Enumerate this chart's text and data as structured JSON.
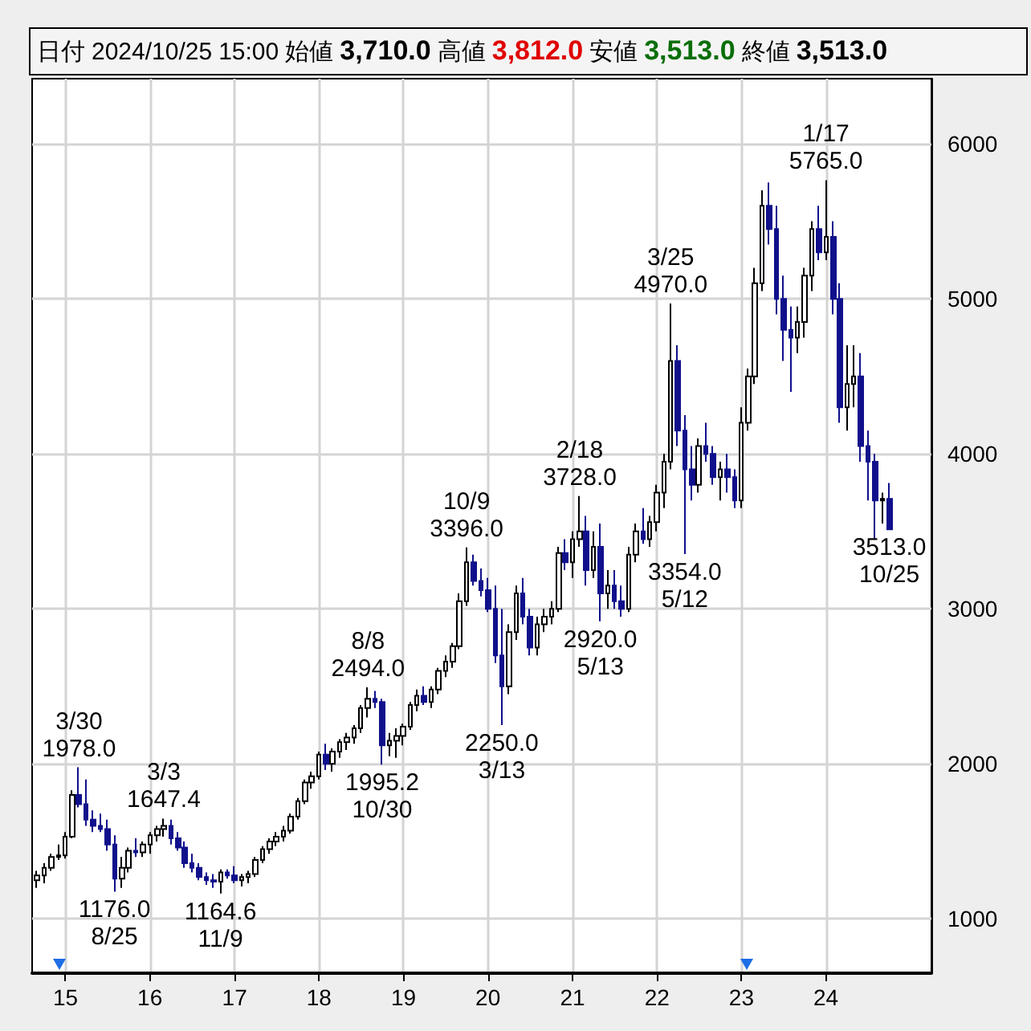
{
  "chart_data": {
    "type": "candlestick",
    "title": "日付 2024/10/25 15:00 始値 3,710.0 高値 3,812.0 安値 3,513.0 終値 3,513.0",
    "x": [
      "2014-09",
      "2014-10",
      "2014-11",
      "2014-12",
      "2015-01",
      "2015-02",
      "2015-03",
      "2015-04",
      "2015-05",
      "2015-06",
      "2015-07",
      "2015-08",
      "2015-09",
      "2015-10",
      "2015-11",
      "2015-12",
      "2016-01",
      "2016-02",
      "2016-03",
      "2016-04",
      "2016-05",
      "2016-06",
      "2016-07",
      "2016-08",
      "2016-09",
      "2016-10",
      "2016-11",
      "2016-12",
      "2017-01",
      "2017-02",
      "2017-03",
      "2017-04",
      "2017-05",
      "2017-06",
      "2017-07",
      "2017-08",
      "2017-09",
      "2017-10",
      "2017-11",
      "2017-12",
      "2018-01",
      "2018-02",
      "2018-03",
      "2018-04",
      "2018-05",
      "2018-06",
      "2018-07",
      "2018-08",
      "2018-09",
      "2018-10",
      "2018-11",
      "2018-12",
      "2019-01",
      "2019-02",
      "2019-03",
      "2019-04",
      "2019-05",
      "2019-06",
      "2019-07",
      "2019-08",
      "2019-09",
      "2019-10",
      "2019-11",
      "2019-12",
      "2020-01",
      "2020-02",
      "2020-03",
      "2020-04",
      "2020-05",
      "2020-06",
      "2020-07",
      "2020-08",
      "2020-09",
      "2020-10",
      "2020-11",
      "2020-12",
      "2021-01",
      "2021-02",
      "2021-03",
      "2021-04",
      "2021-05",
      "2021-06",
      "2021-07",
      "2021-08",
      "2021-09",
      "2021-10",
      "2021-11",
      "2021-12",
      "2022-01",
      "2022-02",
      "2022-03",
      "2022-04",
      "2022-05",
      "2022-06",
      "2022-07",
      "2022-08",
      "2022-09",
      "2022-10",
      "2022-11",
      "2022-12",
      "2023-01",
      "2023-02",
      "2023-03",
      "2023-04",
      "2023-05",
      "2023-06",
      "2023-07",
      "2023-08",
      "2023-09",
      "2023-10",
      "2023-11",
      "2023-12",
      "2024-01",
      "2024-02",
      "2024-03",
      "2024-04",
      "2024-05",
      "2024-06",
      "2024-07",
      "2024-08",
      "2024-09",
      "2024-10"
    ],
    "ohlc": [
      [
        1250,
        1310,
        1200,
        1280
      ],
      [
        1280,
        1360,
        1230,
        1330
      ],
      [
        1330,
        1420,
        1310,
        1400
      ],
      [
        1400,
        1480,
        1380,
        1410
      ],
      [
        1410,
        1560,
        1390,
        1530
      ],
      [
        1530,
        1830,
        1520,
        1800
      ],
      [
        1800,
        1978,
        1720,
        1740
      ],
      [
        1740,
        1900,
        1600,
        1640
      ],
      [
        1640,
        1700,
        1560,
        1600
      ],
      [
        1600,
        1680,
        1560,
        1580
      ],
      [
        1580,
        1640,
        1440,
        1480
      ],
      [
        1480,
        1540,
        1176,
        1260
      ],
      [
        1260,
        1400,
        1200,
        1330
      ],
      [
        1330,
        1460,
        1300,
        1440
      ],
      [
        1440,
        1520,
        1400,
        1430
      ],
      [
        1430,
        1500,
        1400,
        1480
      ],
      [
        1480,
        1560,
        1420,
        1540
      ],
      [
        1540,
        1600,
        1500,
        1580
      ],
      [
        1580,
        1647.4,
        1530,
        1600
      ],
      [
        1600,
        1640,
        1480,
        1520
      ],
      [
        1520,
        1560,
        1440,
        1460
      ],
      [
        1460,
        1500,
        1330,
        1360
      ],
      [
        1360,
        1420,
        1300,
        1330
      ],
      [
        1330,
        1360,
        1250,
        1270
      ],
      [
        1270,
        1300,
        1220,
        1250
      ],
      [
        1250,
        1290,
        1200,
        1240
      ],
      [
        1240,
        1320,
        1164.6,
        1300
      ],
      [
        1300,
        1320,
        1260,
        1280
      ],
      [
        1280,
        1340,
        1230,
        1250
      ],
      [
        1250,
        1290,
        1210,
        1270
      ],
      [
        1270,
        1310,
        1230,
        1290
      ],
      [
        1290,
        1400,
        1270,
        1380
      ],
      [
        1380,
        1470,
        1360,
        1450
      ],
      [
        1450,
        1520,
        1420,
        1500
      ],
      [
        1500,
        1560,
        1470,
        1530
      ],
      [
        1530,
        1600,
        1500,
        1570
      ],
      [
        1570,
        1680,
        1550,
        1660
      ],
      [
        1660,
        1780,
        1640,
        1760
      ],
      [
        1760,
        1900,
        1740,
        1880
      ],
      [
        1880,
        1950,
        1840,
        1920
      ],
      [
        1920,
        2080,
        1900,
        2060
      ],
      [
        2060,
        2130,
        1960,
        2000
      ],
      [
        2000,
        2100,
        1950,
        2080
      ],
      [
        2080,
        2160,
        2040,
        2140
      ],
      [
        2140,
        2200,
        2090,
        2170
      ],
      [
        2170,
        2250,
        2130,
        2230
      ],
      [
        2230,
        2380,
        2200,
        2360
      ],
      [
        2360,
        2494,
        2300,
        2420
      ],
      [
        2420,
        2470,
        2360,
        2400
      ],
      [
        2400,
        2420,
        1995.2,
        2120
      ],
      [
        2120,
        2200,
        2050,
        2150
      ],
      [
        2150,
        2230,
        2040,
        2180
      ],
      [
        2180,
        2260,
        2120,
        2240
      ],
      [
        2240,
        2400,
        2220,
        2380
      ],
      [
        2380,
        2480,
        2340,
        2440
      ],
      [
        2440,
        2500,
        2380,
        2400
      ],
      [
        2400,
        2500,
        2360,
        2480
      ],
      [
        2480,
        2620,
        2450,
        2600
      ],
      [
        2600,
        2700,
        2560,
        2660
      ],
      [
        2660,
        2780,
        2620,
        2760
      ],
      [
        2760,
        3100,
        2740,
        3050
      ],
      [
        3050,
        3396,
        3020,
        3300
      ],
      [
        3300,
        3350,
        3150,
        3180
      ],
      [
        3180,
        3260,
        3080,
        3120
      ],
      [
        3120,
        3200,
        2980,
        3000
      ],
      [
        3000,
        3150,
        2650,
        2700
      ],
      [
        2700,
        3000,
        2250,
        2500
      ],
      [
        2500,
        2900,
        2450,
        2850
      ],
      [
        2850,
        3150,
        2800,
        3100
      ],
      [
        3100,
        3200,
        2900,
        2950
      ],
      [
        2950,
        3000,
        2700,
        2750
      ],
      [
        2750,
        2950,
        2700,
        2900
      ],
      [
        2900,
        3000,
        2850,
        2950
      ],
      [
        2950,
        3050,
        2900,
        3000
      ],
      [
        3000,
        3400,
        2980,
        3360
      ],
      [
        3360,
        3450,
        3250,
        3300
      ],
      [
        3300,
        3500,
        3200,
        3450
      ],
      [
        3450,
        3728,
        3400,
        3500
      ],
      [
        3500,
        3600,
        3150,
        3250
      ],
      [
        3250,
        3500,
        3200,
        3400
      ],
      [
        3400,
        3550,
        2920,
        3100
      ],
      [
        3100,
        3250,
        3000,
        3150
      ],
      [
        3150,
        3250,
        3000,
        3050
      ],
      [
        3050,
        3150,
        2950,
        3000
      ],
      [
        3000,
        3400,
        2980,
        3350
      ],
      [
        3350,
        3550,
        3300,
        3500
      ],
      [
        3500,
        3650,
        3420,
        3450
      ],
      [
        3450,
        3600,
        3400,
        3560
      ],
      [
        3560,
        3800,
        3500,
        3750
      ],
      [
        3750,
        4000,
        3650,
        3950
      ],
      [
        3950,
        4970,
        3900,
        4600
      ],
      [
        4600,
        4700,
        4050,
        4150
      ],
      [
        4150,
        4250,
        3354,
        3900
      ],
      [
        3900,
        4050,
        3700,
        3800
      ],
      [
        3800,
        4100,
        3750,
        4050
      ],
      [
        4050,
        4200,
        3950,
        4000
      ],
      [
        4000,
        4050,
        3800,
        3850
      ],
      [
        3850,
        3950,
        3700,
        3900
      ],
      [
        3900,
        4000,
        3750,
        3850
      ],
      [
        3850,
        3900,
        3650,
        3700
      ],
      [
        3700,
        4300,
        3650,
        4200
      ],
      [
        4200,
        4550,
        4150,
        4500
      ],
      [
        4500,
        5200,
        4450,
        5100
      ],
      [
        5100,
        5700,
        5050,
        5600
      ],
      [
        5600,
        5750,
        5350,
        5450
      ],
      [
        5450,
        5600,
        4900,
        5000
      ],
      [
        5000,
        5150,
        4600,
        4800
      ],
      [
        4800,
        4950,
        4400,
        4750
      ],
      [
        4750,
        4950,
        4650,
        4850
      ],
      [
        4850,
        5200,
        4750,
        5150
      ],
      [
        5150,
        5500,
        5050,
        5450
      ],
      [
        5450,
        5600,
        5250,
        5300
      ],
      [
        5300,
        5765,
        5250,
        5400
      ],
      [
        5400,
        5500,
        4900,
        5000
      ],
      [
        5000,
        5100,
        4200,
        4300
      ],
      [
        4300,
        4700,
        4150,
        4450
      ],
      [
        4450,
        4700,
        4300,
        4500
      ],
      [
        4500,
        4650,
        3950,
        4050
      ],
      [
        4050,
        4150,
        3700,
        3950
      ],
      [
        3950,
        4000,
        3450,
        3700
      ],
      [
        3700,
        3750,
        3550,
        3710
      ],
      [
        3710,
        3812,
        3513,
        3513
      ]
    ],
    "annotations": [
      {
        "text": "3/30\n1978.0",
        "x": "2015-03",
        "y": 1978
      },
      {
        "text": "1176.0\n8/25",
        "x": "2015-08",
        "y": 1176
      },
      {
        "text": "3/3\n1647.4",
        "x": "2016-03",
        "y": 1647.4
      },
      {
        "text": "1164.6\n11/9",
        "x": "2016-11",
        "y": 1164.6
      },
      {
        "text": "8/8\n2494.0",
        "x": "2018-08",
        "y": 2494
      },
      {
        "text": "1995.2\n10/30",
        "x": "2018-10",
        "y": 1995.2
      },
      {
        "text": "10/9\n3396.0",
        "x": "2019-10",
        "y": 3396
      },
      {
        "text": "2250.0\n3/13",
        "x": "2020-03",
        "y": 2250
      },
      {
        "text": "2/18\n3728.0",
        "x": "2021-02",
        "y": 3728
      },
      {
        "text": "2920.0\n5/13",
        "x": "2021-05",
        "y": 2920
      },
      {
        "text": "3/25\n4970.0",
        "x": "2022-03",
        "y": 4970
      },
      {
        "text": "3354.0\n5/12",
        "x": "2022-05",
        "y": 3354
      },
      {
        "text": "1/17\n5765.0",
        "x": "2024-01",
        "y": 5765
      },
      {
        "text": "3513.0\n10/25",
        "x": "2024-10",
        "y": 3513
      }
    ],
    "xlim": [
      "2014-08-10",
      "2025-04-01"
    ],
    "xticks": [
      {
        "value": "2015-01",
        "label": "15"
      },
      {
        "value": "2016-01",
        "label": "16"
      },
      {
        "value": "2017-01",
        "label": "17"
      },
      {
        "value": "2018-01",
        "label": "18"
      },
      {
        "value": "2019-01",
        "label": "19"
      },
      {
        "value": "2020-01",
        "label": "20"
      },
      {
        "value": "2021-01",
        "label": "21"
      },
      {
        "value": "2022-01",
        "label": "22"
      },
      {
        "value": "2023-01",
        "label": "23"
      },
      {
        "value": "2024-01",
        "label": "24"
      }
    ],
    "ylim": [
      650,
      6420
    ],
    "yticks": [
      1000,
      2000,
      3000,
      4000,
      5000,
      6000
    ],
    "grid": true
  }
}
